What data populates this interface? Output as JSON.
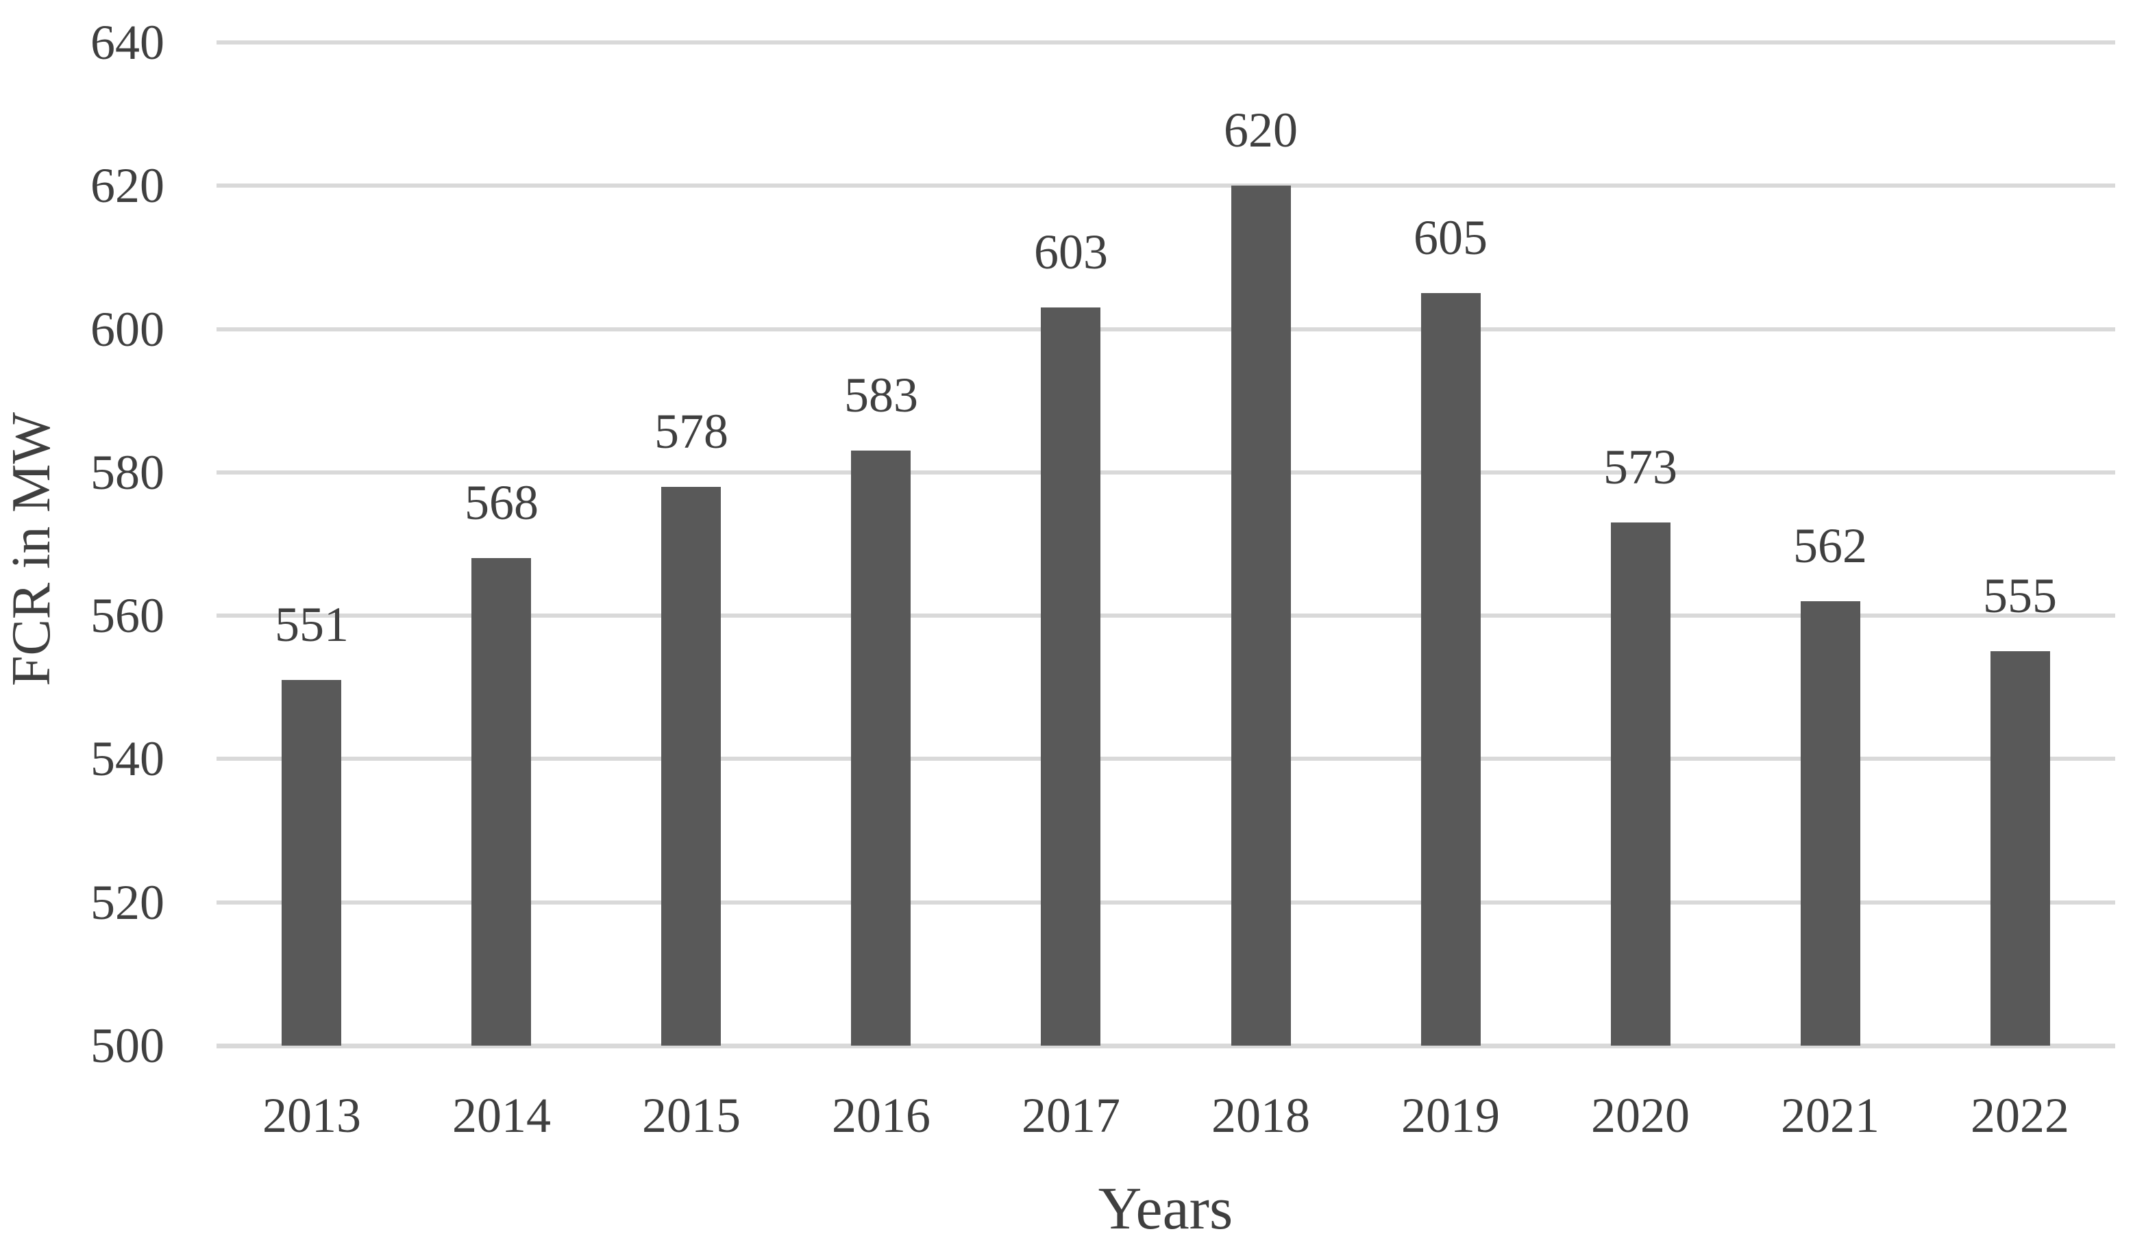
{
  "chart_data": {
    "type": "bar",
    "title": "",
    "xlabel": "Years",
    "ylabel": "FCR in MW",
    "categories": [
      "2013",
      "2014",
      "2015",
      "2016",
      "2017",
      "2018",
      "2019",
      "2020",
      "2021",
      "2022"
    ],
    "values": [
      551,
      568,
      578,
      583,
      603,
      620,
      605,
      573,
      562,
      555
    ],
    "data_labels": [
      "551",
      "568",
      "578",
      "583",
      "603",
      "620",
      "605",
      "573",
      "562",
      "555"
    ],
    "ylim": [
      500,
      640
    ],
    "ytick_step": 20,
    "ytick_labels": [
      "500",
      "520",
      "540",
      "560",
      "580",
      "600",
      "620",
      "640"
    ],
    "grid": true,
    "legend_position": "none",
    "colors": {
      "bar": "#595959",
      "gridline": "#D9D9D9",
      "axis_line": "#D9D9D9",
      "text": "#3F3F3F",
      "background": "#FFFFFF"
    }
  }
}
